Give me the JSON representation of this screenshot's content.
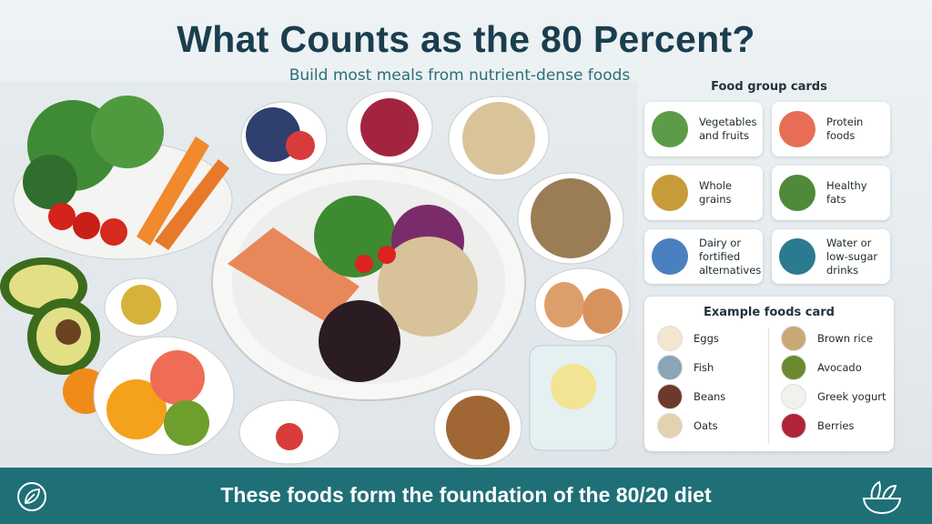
{
  "header": {
    "title": "What Counts as the 80 Percent?",
    "subtitle": "Build most meals from nutrient-dense foods"
  },
  "food_group_cards": {
    "title": "Food group cards",
    "items": [
      {
        "label": "Vegetables and fruits"
      },
      {
        "label": "Protein foods"
      },
      {
        "label": "Whole grains"
      },
      {
        "label": "Healthy fats"
      },
      {
        "label": "Dairy or fortified alternatives"
      },
      {
        "label": "Water or low-sugar drinks"
      }
    ]
  },
  "example_foods_card": {
    "title": "Example foods card",
    "items": [
      {
        "label": "Eggs"
      },
      {
        "label": "Brown rice"
      },
      {
        "label": "Fish"
      },
      {
        "label": "Avocado"
      },
      {
        "label": "Beans"
      },
      {
        "label": "Greek yogurt"
      },
      {
        "label": "Oats"
      },
      {
        "label": "Berries"
      }
    ]
  },
  "footer": {
    "text": "These foods form the foundation of the 80/20 diet"
  }
}
